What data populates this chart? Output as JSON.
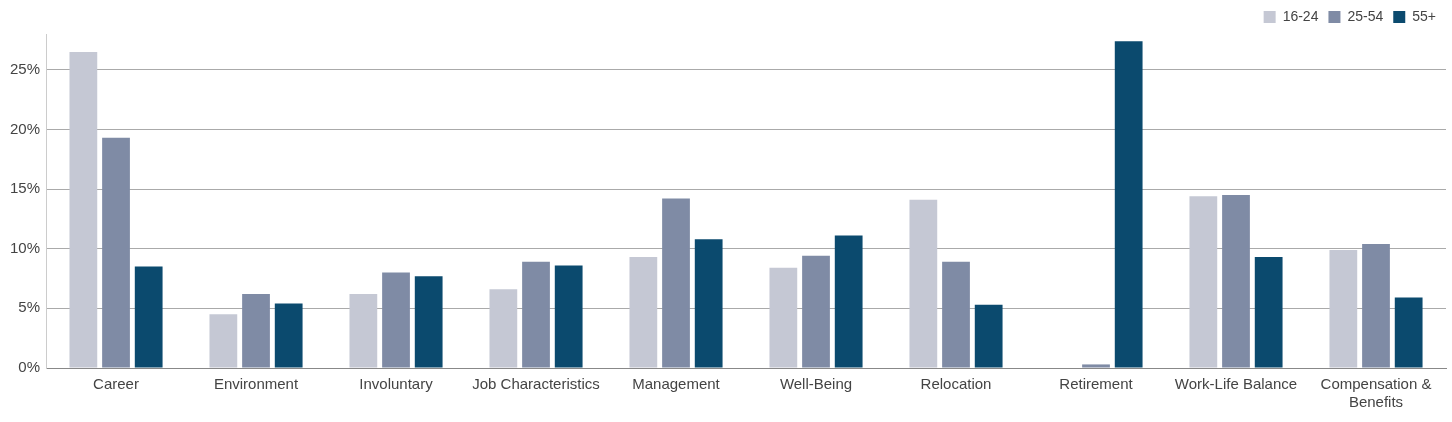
{
  "chart_data": {
    "type": "bar",
    "categories": [
      "Career",
      "Environment",
      "Involuntary",
      "Job Characteristics",
      "Management",
      "Well-Being",
      "Relocation",
      "Retirement",
      "Work-Life Balance",
      "Compensation & Benefits"
    ],
    "series": [
      {
        "name": "16-24",
        "color": "#c5c8d4",
        "values": [
          26.5,
          4.5,
          6.2,
          6.6,
          9.3,
          8.4,
          14.1,
          0,
          14.4,
          9.9
        ]
      },
      {
        "name": "25-54",
        "color": "#7f8ba5",
        "values": [
          19.3,
          6.2,
          8.0,
          8.9,
          14.2,
          9.4,
          8.9,
          0.3,
          14.5,
          10.4
        ]
      },
      {
        "name": "55+",
        "color": "#0b4a6e",
        "values": [
          8.5,
          5.4,
          7.7,
          8.6,
          10.8,
          11.1,
          5.3,
          27.4,
          9.3,
          5.9
        ]
      }
    ],
    "ylim": [
      0,
      28
    ],
    "yticks": [
      {
        "value": 0,
        "label": "0%"
      },
      {
        "value": 5,
        "label": "5%"
      },
      {
        "value": 10,
        "label": "10%"
      },
      {
        "value": 15,
        "label": "15%"
      },
      {
        "value": 20,
        "label": "20%"
      },
      {
        "value": 25,
        "label": "25%"
      }
    ],
    "grid": "y",
    "legend": "top right"
  }
}
